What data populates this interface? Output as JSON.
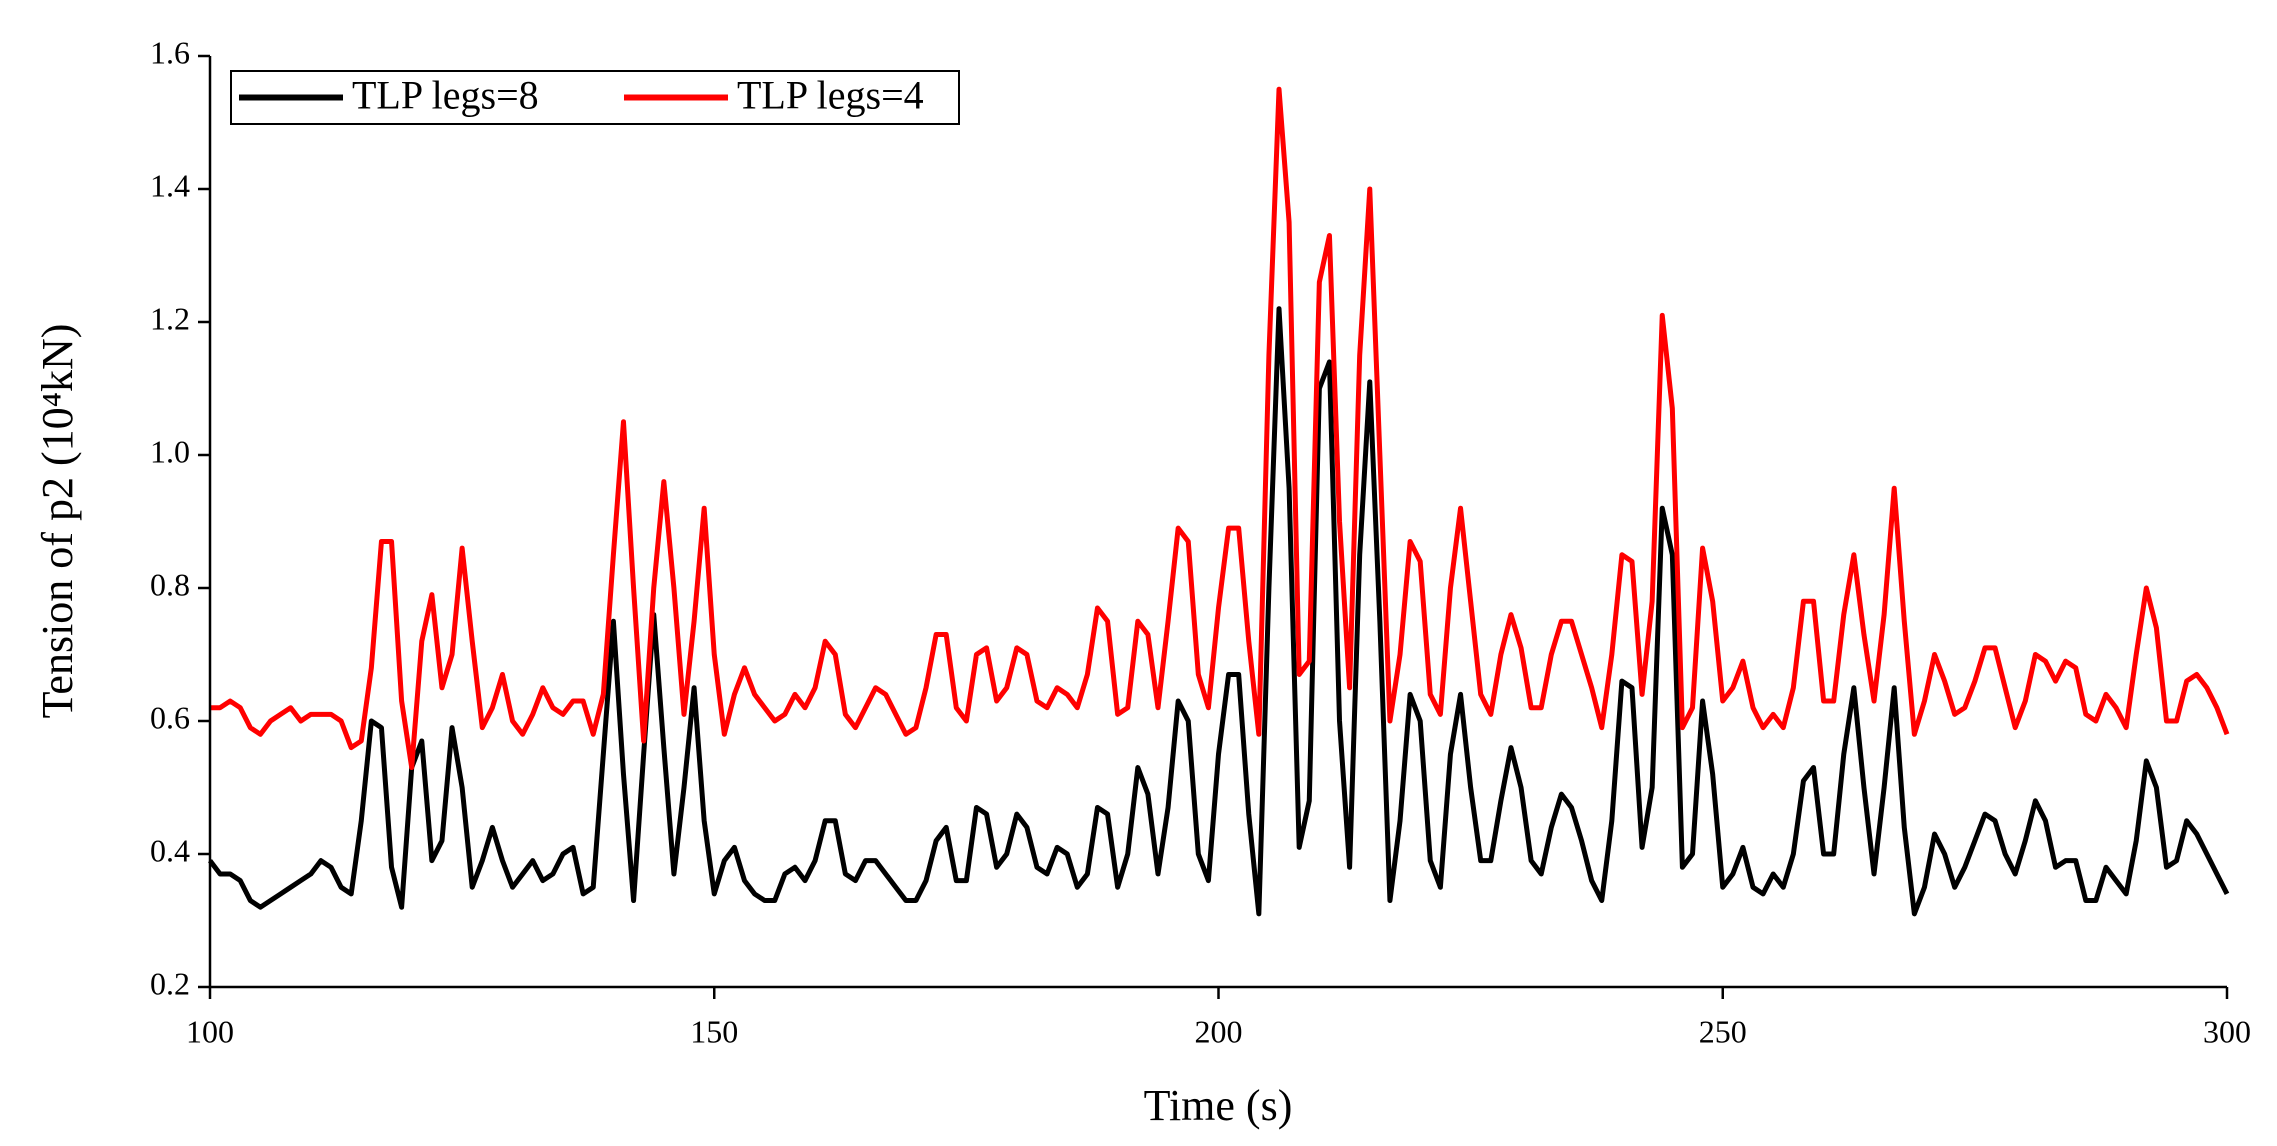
{
  "chart_data": {
    "type": "line",
    "xlabel": "Time (s)",
    "ylabel": "Tension of p2 (10⁴kN)",
    "legend": "upper left",
    "x": [
      100,
      101,
      102,
      103,
      104,
      105,
      106,
      107,
      108,
      109,
      110,
      111,
      112,
      113,
      114,
      115,
      116,
      117,
      118,
      119,
      120,
      121,
      122,
      123,
      124,
      125,
      126,
      127,
      128,
      129,
      130,
      131,
      132,
      133,
      134,
      135,
      136,
      137,
      138,
      139,
      140,
      141,
      142,
      143,
      144,
      145,
      146,
      147,
      148,
      149,
      150,
      151,
      152,
      153,
      154,
      155,
      156,
      157,
      158,
      159,
      160,
      161,
      162,
      163,
      164,
      165,
      166,
      167,
      168,
      169,
      170,
      171,
      172,
      173,
      174,
      175,
      176,
      177,
      178,
      179,
      180,
      181,
      182,
      183,
      184,
      185,
      186,
      187,
      188,
      189,
      190,
      191,
      192,
      193,
      194,
      195,
      196,
      197,
      198,
      199,
      200,
      201,
      202,
      203,
      204,
      205,
      206,
      207,
      208,
      209,
      210,
      211,
      212,
      213,
      214,
      215,
      216,
      217,
      218,
      219,
      220,
      221,
      222,
      223,
      224,
      225,
      226,
      227,
      228,
      229,
      230,
      231,
      232,
      233,
      234,
      235,
      236,
      237,
      238,
      239,
      240,
      241,
      242,
      243,
      244,
      245,
      246,
      247,
      248,
      249,
      250,
      251,
      252,
      253,
      254,
      255,
      256,
      257,
      258,
      259,
      260,
      261,
      262,
      263,
      264,
      265,
      266,
      267,
      268,
      269,
      270,
      271,
      272,
      273,
      274,
      275,
      276,
      277,
      278,
      279,
      280,
      281,
      282,
      283,
      284,
      285,
      286,
      287,
      288,
      289,
      290,
      291,
      292,
      293,
      294,
      295,
      296,
      297,
      298,
      299,
      300
    ],
    "series": [
      {
        "name": "TLP legs=8",
        "color": "#000000",
        "values": [
          0.39,
          0.37,
          0.37,
          0.36,
          0.33,
          0.32,
          0.33,
          0.34,
          0.35,
          0.36,
          0.37,
          0.39,
          0.38,
          0.35,
          0.34,
          0.45,
          0.6,
          0.59,
          0.38,
          0.32,
          0.53,
          0.57,
          0.39,
          0.42,
          0.59,
          0.5,
          0.35,
          0.39,
          0.44,
          0.39,
          0.35,
          0.37,
          0.39,
          0.36,
          0.37,
          0.4,
          0.41,
          0.34,
          0.35,
          0.55,
          0.75,
          0.52,
          0.33,
          0.55,
          0.76,
          0.56,
          0.37,
          0.5,
          0.65,
          0.45,
          0.34,
          0.39,
          0.41,
          0.36,
          0.34,
          0.33,
          0.33,
          0.37,
          0.38,
          0.36,
          0.39,
          0.45,
          0.45,
          0.37,
          0.36,
          0.39,
          0.39,
          0.37,
          0.35,
          0.33,
          0.33,
          0.36,
          0.42,
          0.44,
          0.36,
          0.36,
          0.47,
          0.46,
          0.38,
          0.4,
          0.46,
          0.44,
          0.38,
          0.37,
          0.41,
          0.4,
          0.35,
          0.37,
          0.47,
          0.46,
          0.35,
          0.4,
          0.53,
          0.49,
          0.37,
          0.47,
          0.63,
          0.6,
          0.4,
          0.36,
          0.55,
          0.67,
          0.67,
          0.46,
          0.31,
          0.8,
          1.22,
          0.95,
          0.41,
          0.48,
          1.1,
          1.14,
          0.6,
          0.38,
          0.85,
          1.11,
          0.75,
          0.33,
          0.45,
          0.64,
          0.6,
          0.39,
          0.35,
          0.55,
          0.64,
          0.5,
          0.39,
          0.39,
          0.48,
          0.56,
          0.5,
          0.39,
          0.37,
          0.44,
          0.49,
          0.47,
          0.42,
          0.36,
          0.33,
          0.45,
          0.66,
          0.65,
          0.41,
          0.5,
          0.92,
          0.85,
          0.38,
          0.4,
          0.63,
          0.52,
          0.35,
          0.37,
          0.41,
          0.35,
          0.34,
          0.37,
          0.35,
          0.4,
          0.51,
          0.53,
          0.4,
          0.4,
          0.55,
          0.65,
          0.5,
          0.37,
          0.5,
          0.65,
          0.44,
          0.31,
          0.35,
          0.43,
          0.4,
          0.35,
          0.38,
          0.42,
          0.46,
          0.45,
          0.4,
          0.37,
          0.42,
          0.48,
          0.45,
          0.38,
          0.39,
          0.39,
          0.33,
          0.33,
          0.38,
          0.36,
          0.34,
          0.42,
          0.54,
          0.5,
          0.38,
          0.39,
          0.45,
          0.43,
          0.4,
          0.37,
          0.34
        ]
      },
      {
        "name": "TLP legs=4",
        "color": "#ff0000",
        "values": [
          0.62,
          0.62,
          0.63,
          0.62,
          0.59,
          0.58,
          0.6,
          0.61,
          0.62,
          0.6,
          0.61,
          0.61,
          0.61,
          0.6,
          0.56,
          0.57,
          0.68,
          0.87,
          0.87,
          0.63,
          0.53,
          0.72,
          0.79,
          0.65,
          0.7,
          0.86,
          0.72,
          0.59,
          0.62,
          0.67,
          0.6,
          0.58,
          0.61,
          0.65,
          0.62,
          0.61,
          0.63,
          0.63,
          0.58,
          0.64,
          0.85,
          1.05,
          0.8,
          0.57,
          0.8,
          0.96,
          0.8,
          0.61,
          0.75,
          0.92,
          0.7,
          0.58,
          0.64,
          0.68,
          0.64,
          0.62,
          0.6,
          0.61,
          0.64,
          0.62,
          0.65,
          0.72,
          0.7,
          0.61,
          0.59,
          0.62,
          0.65,
          0.64,
          0.61,
          0.58,
          0.59,
          0.65,
          0.73,
          0.73,
          0.62,
          0.6,
          0.7,
          0.71,
          0.63,
          0.65,
          0.71,
          0.7,
          0.63,
          0.62,
          0.65,
          0.64,
          0.62,
          0.67,
          0.77,
          0.75,
          0.61,
          0.62,
          0.75,
          0.73,
          0.62,
          0.75,
          0.89,
          0.87,
          0.67,
          0.62,
          0.77,
          0.89,
          0.89,
          0.72,
          0.58,
          1.15,
          1.55,
          1.35,
          0.67,
          0.69,
          1.26,
          1.33,
          0.9,
          0.65,
          1.15,
          1.4,
          1.0,
          0.6,
          0.7,
          0.87,
          0.84,
          0.64,
          0.61,
          0.8,
          0.92,
          0.78,
          0.64,
          0.61,
          0.7,
          0.76,
          0.71,
          0.62,
          0.62,
          0.7,
          0.75,
          0.75,
          0.7,
          0.65,
          0.59,
          0.7,
          0.85,
          0.84,
          0.64,
          0.78,
          1.21,
          1.07,
          0.59,
          0.62,
          0.86,
          0.78,
          0.63,
          0.65,
          0.69,
          0.62,
          0.59,
          0.61,
          0.59,
          0.65,
          0.78,
          0.78,
          0.63,
          0.63,
          0.76,
          0.85,
          0.73,
          0.63,
          0.76,
          0.95,
          0.75,
          0.58,
          0.63,
          0.7,
          0.66,
          0.61,
          0.62,
          0.66,
          0.71,
          0.71,
          0.65,
          0.59,
          0.63,
          0.7,
          0.69,
          0.66,
          0.69,
          0.68,
          0.61,
          0.6,
          0.64,
          0.62,
          0.59,
          0.7,
          0.8,
          0.74,
          0.6,
          0.6,
          0.66,
          0.67,
          0.65,
          0.62,
          0.58
        ]
      }
    ],
    "xlim": [
      100,
      300
    ],
    "xticks": [
      100,
      150,
      200,
      250,
      300
    ],
    "ylim": [
      0.2,
      1.6
    ],
    "yticks": [
      0.2,
      0.4,
      0.6,
      0.8,
      {
        "value": 1,
        "label": "1.0"
      },
      1.2,
      1.4,
      1.6
    ],
    "grid": false
  }
}
